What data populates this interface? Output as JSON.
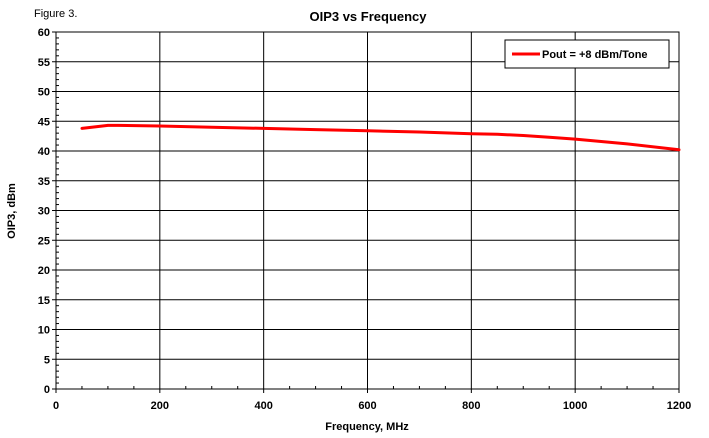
{
  "figure_label": "Figure 3.",
  "chart_data": {
    "type": "line",
    "title": "OIP3 vs Frequency",
    "xlabel": "Frequency, MHz",
    "ylabel": "OIP3, dBm",
    "xlim": [
      0,
      1200
    ],
    "ylim": [
      0,
      60
    ],
    "x_ticks": [
      0,
      200,
      400,
      600,
      800,
      1000,
      1200
    ],
    "y_ticks": [
      0,
      5,
      10,
      15,
      20,
      25,
      30,
      35,
      40,
      45,
      50,
      55,
      60
    ],
    "grid": true,
    "legend_position": "top-right",
    "series": [
      {
        "name": "Pout = +8 dBm/Tone",
        "color": "#ff0000",
        "x": [
          50,
          100,
          120,
          200,
          300,
          400,
          500,
          600,
          700,
          800,
          850,
          900,
          950,
          1000,
          1100,
          1200
        ],
        "y": [
          43.8,
          44.3,
          44.3,
          44.2,
          44.0,
          43.8,
          43.6,
          43.4,
          43.2,
          42.9,
          42.8,
          42.6,
          42.3,
          42.0,
          41.2,
          40.2
        ]
      }
    ]
  }
}
